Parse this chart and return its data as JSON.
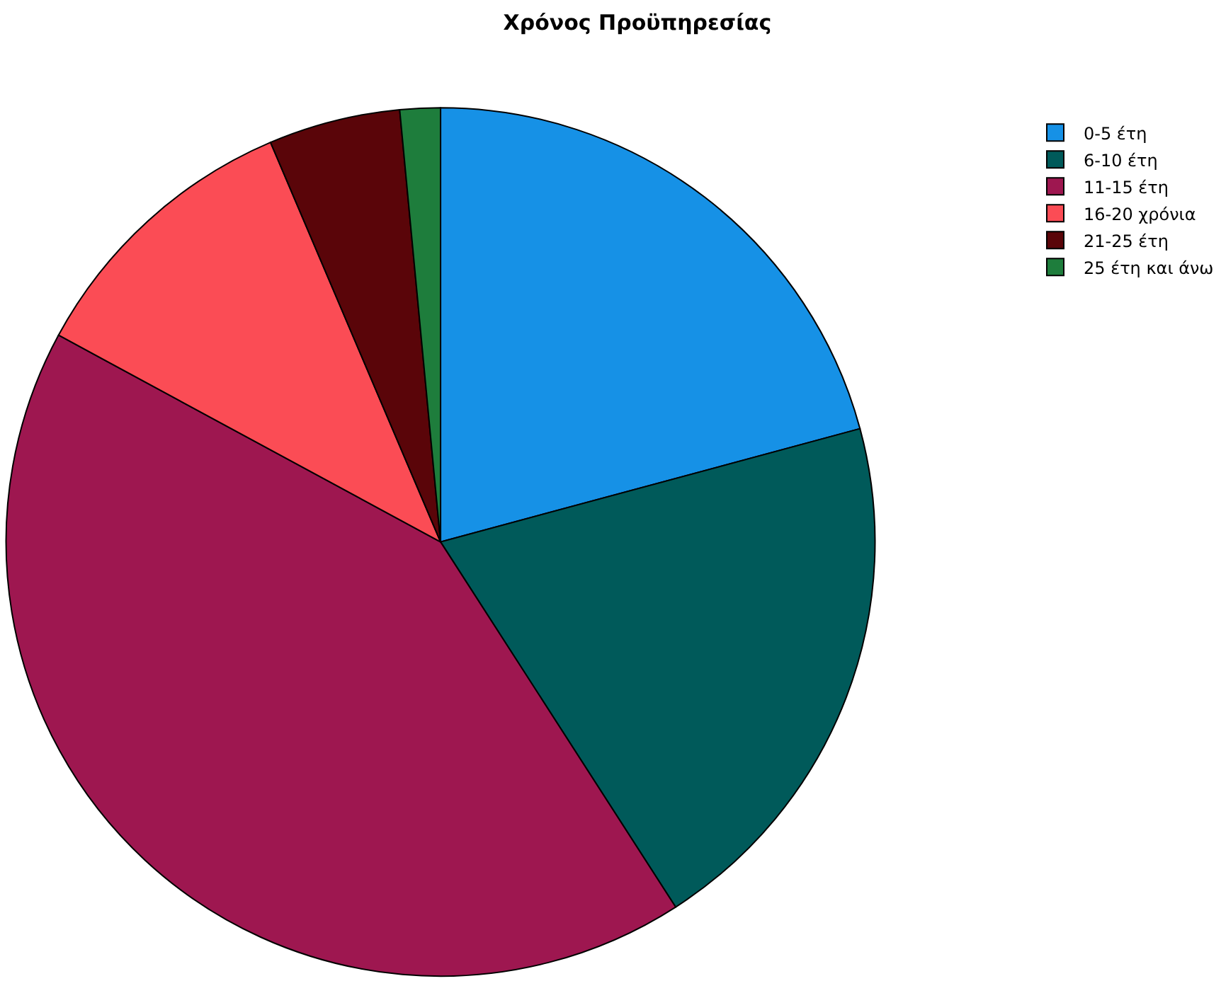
{
  "chart_data": {
    "type": "pie",
    "title": "Χρόνος Προϋπηρεσίας",
    "categories": [
      "0-5 έτη",
      "6-10 έτη",
      "11-15 έτη",
      "16-20 χρόνια",
      "21-25 έτη",
      "25 έτη και άνω"
    ],
    "values": [
      20.8,
      20.1,
      42.0,
      10.7,
      4.9,
      1.5
    ],
    "colors": [
      "#1691e6",
      "#005a5a",
      "#9e1750",
      "#fb4c55",
      "#5a0509",
      "#1e7d3c"
    ],
    "legend": "top right"
  }
}
